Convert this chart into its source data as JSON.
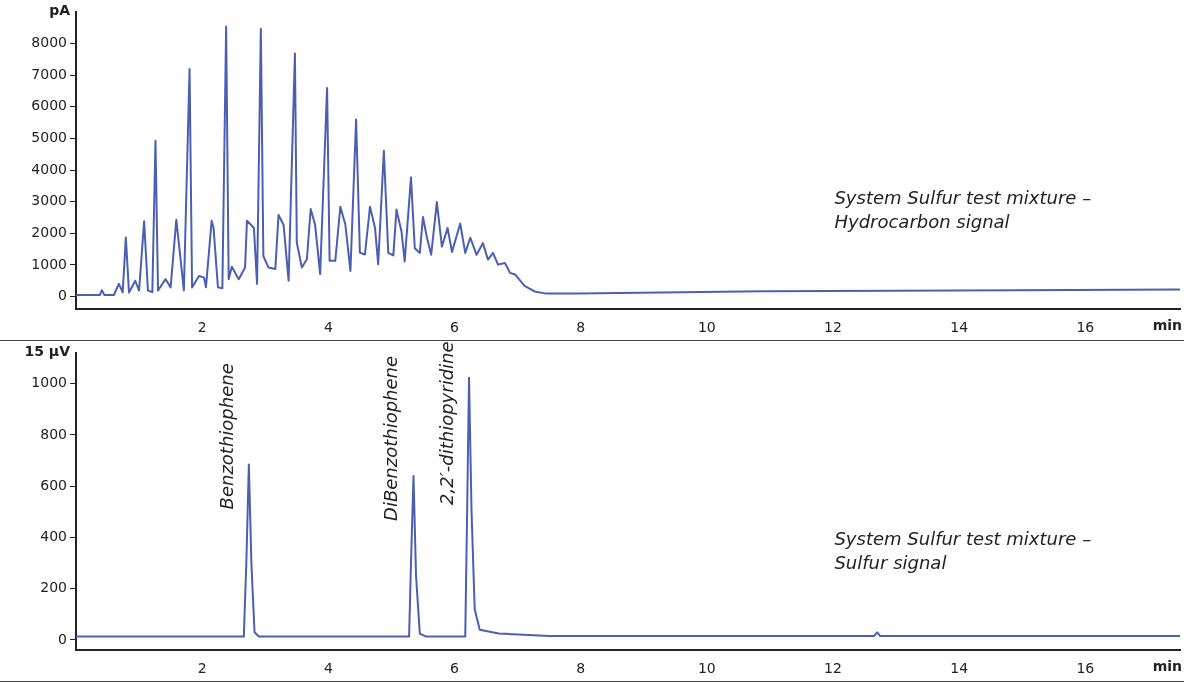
{
  "chart_data": [
    {
      "type": "line",
      "xlabel": "min",
      "ylabel": "pA",
      "xlim": [
        0,
        17.5
      ],
      "xticks": [
        2,
        4,
        6,
        8,
        10,
        12,
        14,
        16
      ],
      "ylim": [
        -400,
        9000
      ],
      "yticks": [
        0,
        1000,
        2000,
        3000,
        4000,
        5000,
        6000,
        7000,
        8000
      ],
      "grid": false,
      "legend": false,
      "marker": "none",
      "line_style": "solid",
      "annotations": [
        "System Sulfur test mixture – Hydrocarbon signal"
      ],
      "x": [
        0,
        0.38,
        0.41,
        0.45,
        0.6,
        0.68,
        0.74,
        0.79,
        0.84,
        0.94,
        1.0,
        1.08,
        1.1,
        1.14,
        1.21,
        1.26,
        1.3,
        1.42,
        1.5,
        1.59,
        1.63,
        1.71,
        1.8,
        1.84,
        1.95,
        2.03,
        2.06,
        2.15,
        2.18,
        2.25,
        2.32,
        2.38,
        2.42,
        2.47,
        2.58,
        2.68,
        2.71,
        2.82,
        2.87,
        2.93,
        2.97,
        3.05,
        3.16,
        3.21,
        3.29,
        3.37,
        3.47,
        3.5,
        3.58,
        3.66,
        3.72,
        3.79,
        3.87,
        3.98,
        4.02,
        4.11,
        4.19,
        4.27,
        4.35,
        4.44,
        4.5,
        4.58,
        4.66,
        4.74,
        4.79,
        4.88,
        4.95,
        5.03,
        5.08,
        5.16,
        5.21,
        5.31,
        5.37,
        5.45,
        5.5,
        5.56,
        5.63,
        5.72,
        5.8,
        5.89,
        5.96,
        6.09,
        6.17,
        6.25,
        6.35,
        6.45,
        6.53,
        6.61,
        6.69,
        6.8,
        6.88,
        6.96,
        7.11,
        7.27,
        7.43,
        7.96,
        11,
        17.5
      ],
      "series": [
        {
          "color": "#4a5fb4",
          "values": [
            50,
            50,
            200,
            50,
            50,
            400,
            130,
            1870,
            130,
            500,
            190,
            2380,
            1650,
            190,
            140,
            4930,
            190,
            550,
            290,
            2430,
            1700,
            190,
            7200,
            290,
            650,
            600,
            290,
            2400,
            2170,
            290,
            260,
            8540,
            550,
            940,
            550,
            920,
            2400,
            2170,
            400,
            8470,
            1280,
            920,
            870,
            2580,
            2270,
            500,
            7690,
            1700,
            920,
            1180,
            2770,
            2270,
            710,
            6600,
            1130,
            1130,
            2840,
            2270,
            810,
            5600,
            1390,
            1330,
            2840,
            2170,
            1020,
            4610,
            1380,
            1300,
            2750,
            2050,
            1110,
            3770,
            1530,
            1380,
            2520,
            1890,
            1320,
            2990,
            1580,
            2170,
            1410,
            2310,
            1380,
            1860,
            1320,
            1690,
            1170,
            1380,
            1010,
            1060,
            750,
            700,
            340,
            160,
            100,
            100,
            170,
            220
          ]
        }
      ]
    },
    {
      "type": "line",
      "xlabel": "min",
      "ylabel": "15 µV",
      "xlim": [
        0,
        17.5
      ],
      "xticks": [
        2,
        4,
        6,
        8,
        10,
        12,
        14,
        16
      ],
      "ylim": [
        -40,
        1120
      ],
      "yticks": [
        0,
        200,
        400,
        600,
        800,
        1000
      ],
      "grid": false,
      "legend": false,
      "marker": "none",
      "line_style": "solid",
      "annotations": [
        {
          "text": "Benzothiophene",
          "x": 2.74,
          "y": 685
        },
        {
          "text": "DiBenzothiophene",
          "x": 5.35,
          "y": 640
        },
        {
          "text": "2,2′-dithiopyridine",
          "x": 6.23,
          "y": 1023
        },
        "System Sulfur test mixture – Sulfur signal"
      ],
      "x": [
        0,
        2.66,
        2.7,
        2.74,
        2.78,
        2.83,
        2.9,
        5.28,
        5.31,
        5.35,
        5.39,
        5.45,
        5.55,
        6.17,
        6.2,
        6.23,
        6.27,
        6.32,
        6.4,
        6.7,
        7.5,
        12.65,
        12.7,
        12.75,
        17.5
      ],
      "series": [
        {
          "color": "#4a5fb4",
          "values": [
            13,
            13,
            300,
            685,
            300,
            30,
            13,
            13,
            300,
            640,
            250,
            25,
            13,
            13,
            500,
            1023,
            500,
            120,
            40,
            25,
            15,
            15,
            30,
            15,
            15
          ]
        }
      ]
    }
  ]
}
